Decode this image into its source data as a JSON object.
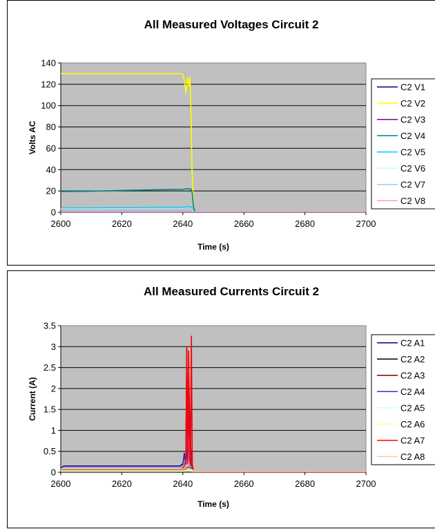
{
  "chart_data": [
    {
      "type": "line",
      "title": "All Measured Voltages Circuit 2",
      "xlabel": "Time (s)",
      "ylabel": "Volts AC",
      "xlim": [
        2600,
        2700
      ],
      "ylim": [
        0,
        140
      ],
      "xticks": [
        2600,
        2620,
        2640,
        2660,
        2680,
        2700
      ],
      "yticks": [
        0,
        20,
        40,
        60,
        80,
        100,
        120,
        140
      ],
      "plot_background": "#C0C0C0",
      "grid": "horizontal",
      "legend_position": "right",
      "series": [
        {
          "name": "C2 V1",
          "color": "#000080",
          "x": [
            2600,
            2641,
            2641.5,
            2642,
            2642.5,
            2643,
            2643.5,
            2644,
            2700
          ],
          "y": [
            0.3,
            0.3,
            0.3,
            0.3,
            0.3,
            0.3,
            0.2,
            0.2,
            0.2
          ]
        },
        {
          "name": "C2 V2",
          "color": "#FFFF00",
          "x": [
            2600,
            2620,
            2639,
            2640,
            2640.5,
            2641,
            2641.5,
            2642,
            2642.3,
            2642.6,
            2643,
            2643.6,
            2644,
            2700
          ],
          "y": [
            130,
            130,
            130,
            129,
            123,
            112,
            126,
            118,
            127,
            100,
            40,
            1,
            0.3,
            0.3
          ]
        },
        {
          "name": "C2 V3",
          "color": "#800080",
          "x": [
            2600,
            2643.5,
            2644,
            2700
          ],
          "y": [
            0.2,
            0.2,
            0.2,
            0.2
          ]
        },
        {
          "name": "C2 V4",
          "color": "#008080",
          "x": [
            2600,
            2610,
            2620,
            2630,
            2640,
            2641,
            2641.5,
            2642,
            2642.5,
            2643,
            2643.5,
            2644,
            2700
          ],
          "y": [
            19.5,
            19.8,
            20.5,
            21,
            21.5,
            22,
            22.3,
            21.8,
            22,
            20,
            5,
            0.3,
            0.2
          ]
        },
        {
          "name": "C2 V5",
          "color": "#00CCFF",
          "x": [
            2600,
            2620,
            2640,
            2641,
            2642,
            2643,
            2643.5,
            2644,
            2700
          ],
          "y": [
            4,
            4.3,
            4.6,
            5,
            5.3,
            4.5,
            1,
            0.2,
            0.2
          ]
        },
        {
          "name": "C2 V6",
          "color": "#CCFFCC",
          "x": [
            2600,
            2620,
            2640,
            2642,
            2643,
            2643.5,
            2700
          ],
          "y": [
            3.2,
            3.4,
            3.6,
            4.2,
            3,
            0.2,
            0.2
          ]
        },
        {
          "name": "C2 V7",
          "color": "#99CCFF",
          "x": [
            2600,
            2620,
            2640,
            2642,
            2643,
            2643.5,
            2700
          ],
          "y": [
            2.8,
            3,
            3.2,
            3.8,
            2.8,
            0.2,
            0.2
          ]
        },
        {
          "name": "C2 V8",
          "color": "#FF99CC",
          "x": [
            2600,
            2642,
            2643,
            2643.5,
            2700
          ],
          "y": [
            0.3,
            0.3,
            0.3,
            0.2,
            0.2
          ]
        }
      ]
    },
    {
      "type": "line",
      "title": "All Measured Currents Circuit 2",
      "xlabel": "Time (s)",
      "ylabel": "Current (A)",
      "xlim": [
        2600,
        2700
      ],
      "ylim": [
        0,
        3.5
      ],
      "xticks": [
        2600,
        2620,
        2640,
        2660,
        2680,
        2700
      ],
      "yticks": [
        0,
        0.5,
        1,
        1.5,
        2,
        2.5,
        3,
        3.5
      ],
      "ytick_labels": [
        "0",
        "0.5",
        "1",
        "1.5",
        "2",
        "2.5",
        "3",
        "3.5"
      ],
      "plot_background": "#C0C0C0",
      "grid": "horizontal",
      "legend_position": "right",
      "series": [
        {
          "name": "C2 A1",
          "color": "#000080",
          "x": [
            2600,
            2601,
            2639,
            2640,
            2640.5,
            2641,
            2641.3,
            2641.6,
            2641.9,
            2642.2,
            2642.5,
            2642.8,
            2643.1,
            2643.5,
            2644,
            2700
          ],
          "y": [
            0.1,
            0.15,
            0.15,
            0.2,
            0.45,
            0.2,
            2.95,
            0.3,
            2.2,
            0.5,
            0.7,
            0.3,
            0.1,
            0.03,
            0.02,
            0.02
          ]
        },
        {
          "name": "C2 A2",
          "color": "#000000",
          "x": [
            2600,
            2640,
            2641,
            2642,
            2643,
            2644,
            2700
          ],
          "y": [
            0.05,
            0.05,
            0.08,
            0.1,
            0.06,
            0.02,
            0.02
          ]
        },
        {
          "name": "C2 A3",
          "color": "#800000",
          "x": [
            2600,
            2640,
            2641,
            2642,
            2643,
            2644,
            2700
          ],
          "y": [
            0.06,
            0.06,
            0.1,
            0.12,
            0.07,
            0.02,
            0.02
          ]
        },
        {
          "name": "C2 A4",
          "color": "#3333CC",
          "x": [
            2600,
            2601,
            2639,
            2640,
            2640.5,
            2641,
            2641.5,
            2642,
            2642.5,
            2643,
            2643.5,
            2644,
            2700
          ],
          "y": [
            0.1,
            0.14,
            0.14,
            0.18,
            0.4,
            0.2,
            0.6,
            2.2,
            0.55,
            0.1,
            0.03,
            0.02,
            0.02
          ]
        },
        {
          "name": "C2 A5",
          "color": "#CCFFFF",
          "x": [
            2600,
            2640,
            2642,
            2643,
            2644,
            2700
          ],
          "y": [
            0.04,
            0.04,
            0.06,
            0.04,
            0.01,
            0.01
          ]
        },
        {
          "name": "C2 A6",
          "color": "#FFFF99",
          "x": [
            2600,
            2640,
            2642,
            2643,
            2644,
            2700
          ],
          "y": [
            0.03,
            0.03,
            0.05,
            0.03,
            0.01,
            0.01
          ]
        },
        {
          "name": "C2 A7",
          "color": "#FF0000",
          "x": [
            2600,
            2601,
            2639,
            2640,
            2640.5,
            2641,
            2641.3,
            2641.6,
            2641.9,
            2642.2,
            2642.5,
            2642.8,
            2643.1,
            2643.4,
            2643.8,
            2644.2,
            2700
          ],
          "y": [
            0.06,
            0.08,
            0.08,
            0.1,
            0.15,
            0.3,
            3.0,
            0.2,
            2.9,
            0.3,
            0.15,
            3.25,
            0.2,
            0.05,
            0.02,
            0.01,
            0.01
          ]
        },
        {
          "name": "C2 A8",
          "color": "#FFCC99",
          "x": [
            2600,
            2640,
            2642,
            2643,
            2644,
            2700
          ],
          "y": [
            0.08,
            0.08,
            0.1,
            0.06,
            0.02,
            0.02
          ]
        }
      ]
    }
  ]
}
